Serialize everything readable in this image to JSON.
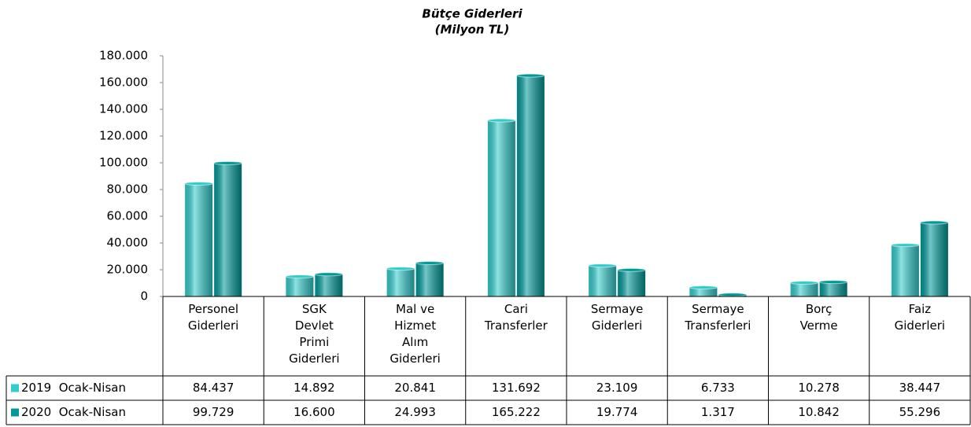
{
  "chart_data": {
    "type": "bar",
    "title": "Bütçe Giderleri",
    "subtitle": "(Milyon TL)",
    "categories": [
      "Personel\nGiderleri",
      "SGK\nDevlet\nPrimi\nGiderleri",
      "Mal ve\nHizmet\nAlım\nGiderleri",
      "Cari\nTransferler",
      "Sermaye\nGiderleri",
      "Sermaye\nTransferleri",
      "Borç\nVerme",
      "Faiz\nGiderleri"
    ],
    "series": [
      {
        "name": "2019  Ocak-Nisan",
        "color": "#33cccc",
        "values": [
          84437,
          14892,
          20841,
          131692,
          23109,
          6733,
          10278,
          38447
        ],
        "value_labels": [
          "84.437",
          "14.892",
          "20.841",
          "131.692",
          "23.109",
          "6.733",
          "10.278",
          "38.447"
        ]
      },
      {
        "name": "2020  Ocak-Nisan",
        "color": "#009999",
        "values": [
          99729,
          16600,
          24993,
          165222,
          19774,
          1317,
          10842,
          55296
        ],
        "value_labels": [
          "99.729",
          "16.600",
          "24.993",
          "165.222",
          "19.774",
          "1.317",
          "10.842",
          "55.296"
        ]
      }
    ],
    "ylim": [
      0,
      180000
    ],
    "yticks": [
      0,
      {
        "value": 20000,
        "label": "20.000"
      },
      {
        "value": 40000,
        "label": "40.000"
      },
      {
        "value": 60000,
        "label": "60.000"
      },
      {
        "value": 80000,
        "label": "80.000"
      },
      {
        "value": 100000,
        "label": "100.000"
      },
      {
        "value": 120000,
        "label": "120.000"
      },
      {
        "value": 140000,
        "label": "140.000"
      },
      {
        "value": 160000,
        "label": "160.000"
      },
      {
        "value": 180000,
        "label": "180.000"
      }
    ],
    "grid": false
  }
}
